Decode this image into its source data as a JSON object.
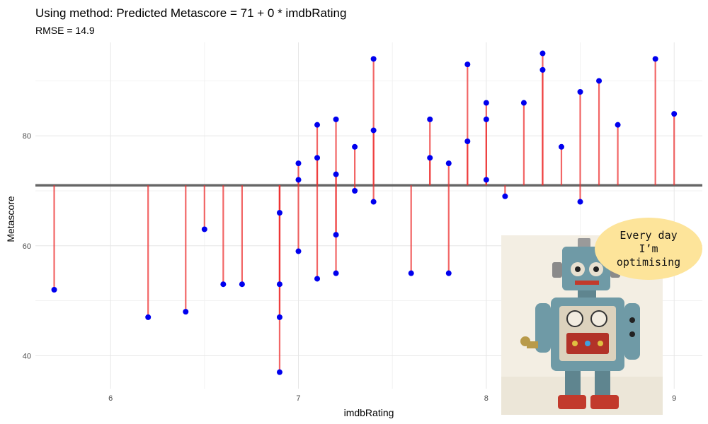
{
  "chart_data": {
    "type": "scatter",
    "title": "Using method: Predicted Metascore = 71 + 0 * imdbRating",
    "subtitle": "RMSE = 14.9",
    "xlabel": "imdbRating",
    "ylabel": "Metascore",
    "xlim": [
      5.6,
      9.15
    ],
    "ylim": [
      34,
      97
    ],
    "x_ticks": [
      6,
      7,
      8,
      9
    ],
    "y_ticks": [
      40,
      60,
      80
    ],
    "grid": true,
    "prediction_line": {
      "intercept": 71,
      "slope": 0,
      "color": "#666666"
    },
    "residual_color": "#ee3333",
    "point_color": "#0000ee",
    "series": [
      {
        "x": [
          5.7,
          6.2,
          6.4,
          6.5,
          6.6,
          6.7,
          6.9,
          6.9,
          6.9,
          6.9,
          7.0,
          7.0,
          7.0,
          7.1,
          7.1,
          7.1,
          7.2,
          7.2,
          7.2,
          7.2,
          7.3,
          7.3,
          7.4,
          7.4,
          7.4,
          7.6,
          7.7,
          7.7,
          7.8,
          7.8,
          7.9,
          7.9,
          8.0,
          8.0,
          8.0,
          8.1,
          8.2,
          8.3,
          8.3,
          8.4,
          8.5,
          8.5,
          8.6,
          8.7,
          8.9,
          9.0
        ],
        "y": [
          52,
          47,
          48,
          63,
          53,
          53,
          66,
          53,
          47,
          37,
          75,
          72,
          59,
          82,
          76,
          54,
          83,
          73,
          62,
          55,
          78,
          70,
          94,
          81,
          68,
          55,
          83,
          76,
          75,
          55,
          93,
          79,
          86,
          83,
          72,
          69,
          86,
          95,
          92,
          78,
          88,
          68,
          90,
          82,
          94,
          84
        ]
      }
    ]
  },
  "decoration": {
    "speech_bubble_text": "Every day\nI’m\noptimising",
    "image_icon": "tin-robot-photo"
  }
}
